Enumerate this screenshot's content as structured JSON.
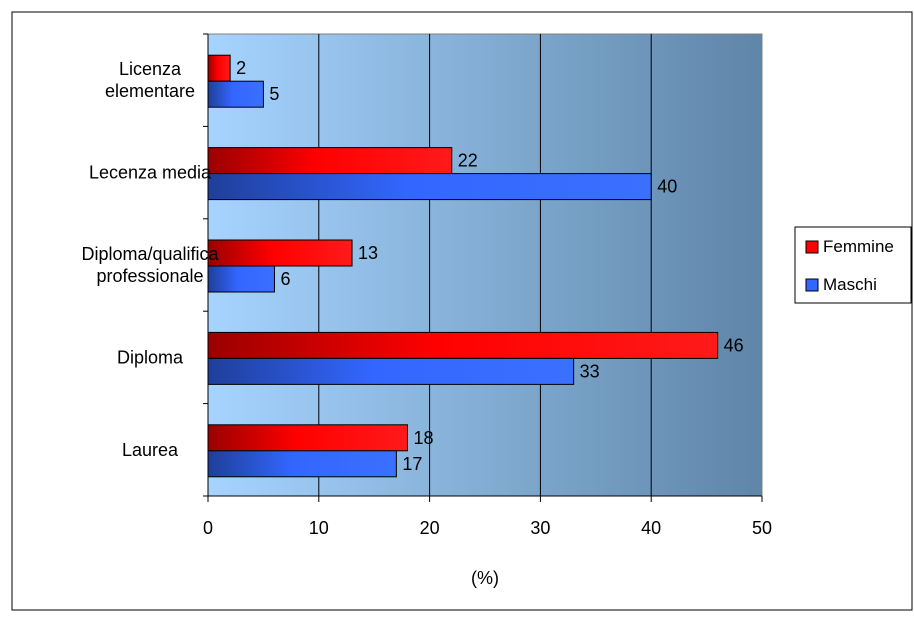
{
  "chart_data": {
    "type": "bar",
    "orientation": "horizontal",
    "categories": [
      "Licenza\nelementare",
      "Lecenza media",
      "Diploma/qualifica\nprofessionale",
      "Diploma",
      "Laurea"
    ],
    "series": [
      {
        "name": "Femmine",
        "values": [
          2,
          22,
          13,
          46,
          18
        ],
        "data_labels": [
          "2",
          "22",
          "13",
          "46",
          "18"
        ],
        "color": "#ff0000"
      },
      {
        "name": "Maschi",
        "values": [
          5,
          40,
          6,
          33,
          17
        ],
        "data_labels": [
          "5",
          "40",
          "6",
          "33",
          "17"
        ],
        "color": "#3366ff"
      }
    ],
    "xlabel": "(%)",
    "xlim": [
      0,
      50
    ],
    "x_ticks": [
      0,
      10,
      20,
      30,
      40,
      50
    ],
    "x_tick_labels": [
      "0",
      "10",
      "20",
      "30",
      "40",
      "50"
    ],
    "grid": true,
    "legend_position": "right",
    "plot_background": [
      "#a6d4ff",
      "#5f85a8"
    ]
  }
}
